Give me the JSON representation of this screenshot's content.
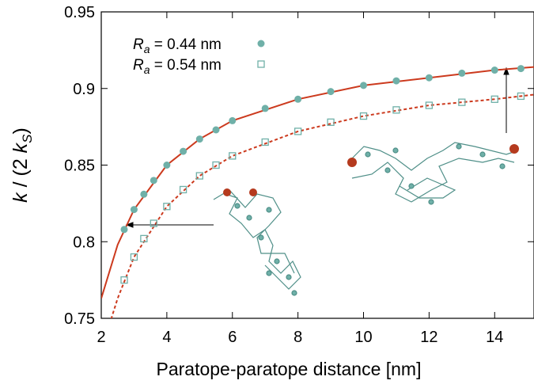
{
  "chart_data": {
    "type": "scatter",
    "x_label": "Paratope-paratope distance [nm]",
    "y_label": "k / (2 kS)",
    "xlim": [
      2,
      15.2
    ],
    "ylim": [
      0.75,
      0.95
    ],
    "xticks": [
      2,
      4,
      6,
      8,
      10,
      12,
      14
    ],
    "yticks": [
      0.75,
      0.8,
      0.85,
      0.9,
      0.95
    ],
    "legend": "top-left",
    "series": [
      {
        "name": "Ra = 0.44 nm",
        "color": "#6fb0a8",
        "marker": "circle",
        "x": [
          2.7,
          3.0,
          3.3,
          3.6,
          4,
          4.5,
          5,
          5.5,
          6,
          7,
          8,
          9,
          10,
          11,
          12,
          13,
          14,
          14.8
        ],
        "values": [
          0.808,
          0.821,
          0.831,
          0.84,
          0.85,
          0.859,
          0.867,
          0.873,
          0.879,
          0.887,
          0.893,
          0.898,
          0.902,
          0.905,
          0.907,
          0.91,
          0.912,
          0.913
        ]
      },
      {
        "name": "Ra = 0.54 nm",
        "color": "#6fb0a8",
        "marker": "square",
        "x": [
          2.7,
          3.0,
          3.3,
          3.6,
          4,
          4.5,
          5,
          5.5,
          6,
          7,
          8,
          9,
          10,
          11,
          12,
          13,
          14,
          14.8
        ],
        "values": [
          0.775,
          0.79,
          0.802,
          0.812,
          0.823,
          0.834,
          0.843,
          0.85,
          0.856,
          0.865,
          0.872,
          0.878,
          0.882,
          0.886,
          0.889,
          0.891,
          0.893,
          0.895
        ]
      }
    ],
    "fits": [
      {
        "color": "#cc3a1e",
        "dash": false,
        "x": [
          2,
          2.5,
          3,
          4,
          5,
          6,
          8,
          10,
          12,
          14,
          15.2
        ],
        "values": [
          0.763,
          0.798,
          0.821,
          0.85,
          0.867,
          0.879,
          0.893,
          0.902,
          0.907,
          0.912,
          0.914
        ]
      },
      {
        "color": "#cc3a1e",
        "dash": true,
        "x": [
          2.25,
          2.5,
          3,
          4,
          5,
          6,
          8,
          10,
          12,
          14,
          15.2
        ],
        "values": [
          0.746,
          0.763,
          0.79,
          0.823,
          0.843,
          0.856,
          0.872,
          0.882,
          0.889,
          0.893,
          0.896
        ]
      }
    ]
  }
}
